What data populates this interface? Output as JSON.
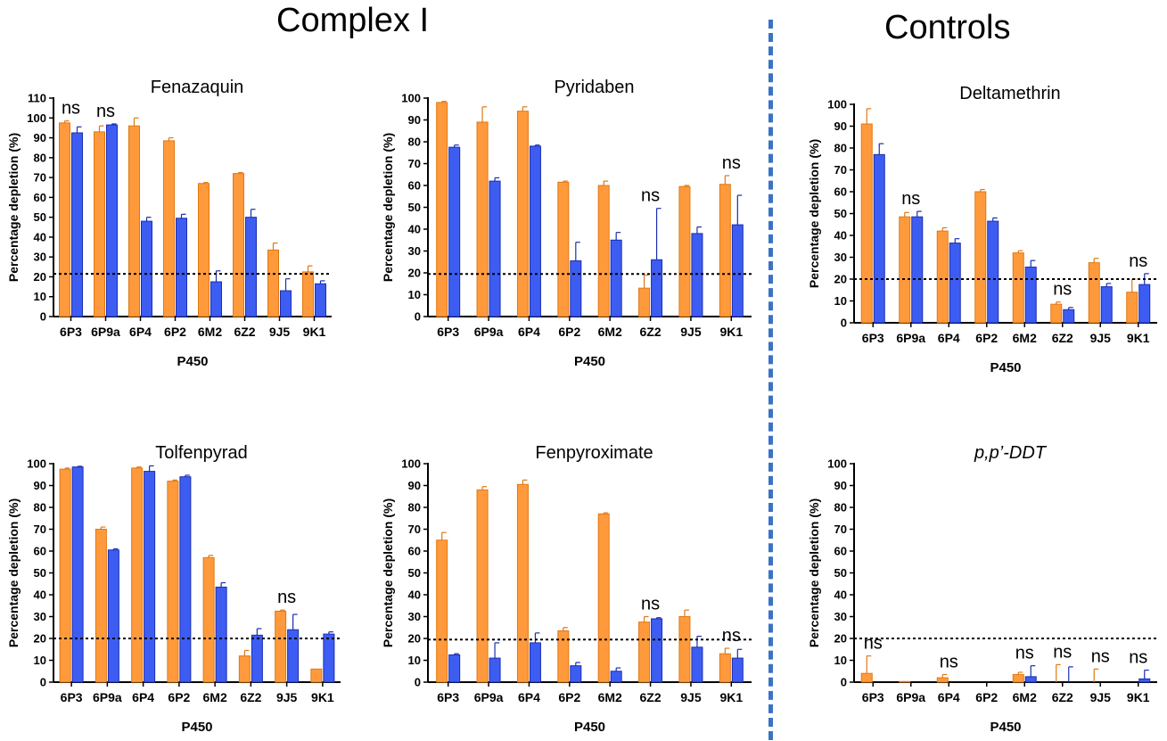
{
  "headers": {
    "left": "Complex I",
    "right": "Controls"
  },
  "colors": {
    "orange": "#ff9a3c",
    "orange_edge": "#e07810",
    "blue": "#3d5df2",
    "blue_edge": "#1a2db0",
    "divider": "#3b73c4"
  },
  "chart_data": [
    {
      "type": "bar",
      "title": "Fenazaquin",
      "title_style": "normal",
      "categories": [
        "6P3",
        "6P9a",
        "6P4",
        "6P2",
        "6M2",
        "6Z2",
        "9J5",
        "9K1"
      ],
      "series": [
        {
          "color": "orange",
          "values": [
            97.5,
            93,
            96,
            88.5,
            67,
            72,
            33.5,
            22.5
          ],
          "errors": [
            1,
            3,
            4,
            1.5,
            0.5,
            0.5,
            3.5,
            3
          ]
        },
        {
          "color": "blue",
          "values": [
            92.5,
            96.5,
            48,
            49.5,
            17.5,
            50,
            13,
            16.5
          ],
          "errors": [
            3,
            0.5,
            2,
            2,
            5.5,
            4,
            6,
            1.5
          ]
        }
      ],
      "ylim": [
        0,
        110
      ],
      "yticks": [
        0,
        10,
        20,
        30,
        40,
        50,
        60,
        70,
        80,
        90,
        100,
        110
      ],
      "threshold": 21.5,
      "ylabel": "Percentage depletion (%)",
      "xlabel": "P450",
      "annotations": [
        {
          "index": 0,
          "text": "ns"
        },
        {
          "index": 1,
          "text": "ns"
        }
      ]
    },
    {
      "type": "bar",
      "title": "Pyridaben",
      "title_style": "normal",
      "categories": [
        "6P3",
        "6P9a",
        "6P4",
        "6P2",
        "6M2",
        "6Z2",
        "9J5",
        "9K1"
      ],
      "series": [
        {
          "color": "orange",
          "values": [
            98,
            89,
            94,
            61.5,
            60,
            13,
            59.5,
            60.5
          ],
          "errors": [
            0.5,
            7,
            2,
            0.5,
            2,
            6,
            0.5,
            4
          ]
        },
        {
          "color": "blue",
          "values": [
            77.5,
            62,
            78,
            25.5,
            35,
            26,
            38,
            42
          ],
          "errors": [
            1,
            1.5,
            0.5,
            8.5,
            3.5,
            23.5,
            3,
            13.5
          ]
        }
      ],
      "ylim": [
        0,
        100
      ],
      "yticks": [
        0,
        10,
        20,
        30,
        40,
        50,
        60,
        70,
        80,
        90,
        100
      ],
      "threshold": 19.5,
      "ylabel": "Percentage depletion (%)",
      "xlabel": "P450",
      "annotations": [
        {
          "index": 5,
          "text": "ns"
        },
        {
          "index": 7,
          "text": "ns"
        }
      ]
    },
    {
      "type": "bar",
      "title": "Deltamethrin",
      "title_style": "normal",
      "categories": [
        "6P3",
        "6P9a",
        "6P4",
        "6P2",
        "6M2",
        "6Z2",
        "9J5",
        "9K1"
      ],
      "series": [
        {
          "color": "orange",
          "values": [
            91,
            48.5,
            42,
            60,
            32,
            8.5,
            27.5,
            14
          ],
          "errors": [
            7,
            2,
            1.5,
            1,
            1,
            1,
            2,
            6
          ]
        },
        {
          "color": "blue",
          "values": [
            77,
            48.5,
            36.5,
            46.5,
            25.5,
            6,
            16.5,
            17.5
          ],
          "errors": [
            5,
            2.5,
            2,
            1.5,
            3,
            1,
            1.5,
            5
          ]
        }
      ],
      "ylim": [
        0,
        100
      ],
      "yticks": [
        0,
        10,
        20,
        30,
        40,
        50,
        60,
        70,
        80,
        90,
        100
      ],
      "threshold": 20,
      "ylabel": "Percentage depletion (%)",
      "xlabel": "P450",
      "annotations": [
        {
          "index": 1,
          "text": "ns"
        },
        {
          "index": 5,
          "text": "ns"
        },
        {
          "index": 7,
          "text": "ns"
        }
      ]
    },
    {
      "type": "bar",
      "title": "Tolfenpyrad",
      "title_style": "normal",
      "categories": [
        "6P3",
        "6P9a",
        "6P4",
        "6P2",
        "6M2",
        "6Z2",
        "9J5",
        "9K1"
      ],
      "series": [
        {
          "color": "orange",
          "values": [
            97.5,
            70,
            98,
            92,
            57,
            12,
            32.5,
            6
          ],
          "errors": [
            0.5,
            1,
            0.5,
            0.5,
            1,
            2.5,
            0.5,
            0
          ]
        },
        {
          "color": "blue",
          "values": [
            98.5,
            60.5,
            96.5,
            94,
            43.5,
            21.5,
            24,
            22
          ],
          "errors": [
            0.3,
            0.5,
            2.5,
            0.7,
            2,
            3,
            7,
            1
          ]
        }
      ],
      "ylim": [
        0,
        100
      ],
      "yticks": [
        0,
        10,
        20,
        30,
        40,
        50,
        60,
        70,
        80,
        90,
        100
      ],
      "threshold": 20,
      "ylabel": "Percentage depletion (%)",
      "xlabel": "P450",
      "annotations": [
        {
          "index": 6,
          "text": "ns"
        }
      ]
    },
    {
      "type": "bar",
      "title": "Fenpyroximate",
      "title_style": "normal",
      "categories": [
        "6P3",
        "6P9a",
        "6P4",
        "6P2",
        "6M2",
        "6Z2",
        "9J5",
        "9K1"
      ],
      "series": [
        {
          "color": "orange",
          "values": [
            65,
            88,
            90.5,
            23.5,
            77,
            27.5,
            30,
            13
          ],
          "errors": [
            3.5,
            1.5,
            2,
            1.5,
            0.5,
            2.5,
            3,
            2.5
          ]
        },
        {
          "color": "blue",
          "values": [
            12.5,
            11,
            18,
            7.5,
            5,
            29,
            16,
            11
          ],
          "errors": [
            0.5,
            7,
            4.5,
            1.5,
            1.5,
            0.5,
            5,
            4
          ]
        }
      ],
      "ylim": [
        0,
        100
      ],
      "yticks": [
        0,
        10,
        20,
        30,
        40,
        50,
        60,
        70,
        80,
        90,
        100
      ],
      "threshold": 19.5,
      "ylabel": "Percentage depletion (%)",
      "xlabel": "P450",
      "annotations": [
        {
          "index": 5,
          "text": "ns"
        },
        {
          "index": 7,
          "text": "ns"
        }
      ]
    },
    {
      "type": "bar",
      "title": "p,p’-DDT",
      "title_style": "italic",
      "categories": [
        "6P3",
        "6P9a",
        "6P4",
        "6P2",
        "6M2",
        "6Z2",
        "9J5",
        "9K1"
      ],
      "series": [
        {
          "color": "orange",
          "values": [
            4,
            0.3,
            2,
            0,
            3.5,
            0,
            0,
            0
          ],
          "errors": [
            8,
            0,
            1.5,
            0,
            1,
            8,
            6,
            0
          ]
        },
        {
          "color": "blue",
          "values": [
            0,
            0,
            0,
            0,
            2.5,
            0,
            0,
            1.5
          ],
          "errors": [
            0,
            0,
            0,
            0,
            5,
            7,
            0,
            4
          ]
        }
      ],
      "ylim": [
        0,
        100
      ],
      "yticks": [
        0,
        10,
        20,
        30,
        40,
        50,
        60,
        70,
        80,
        90,
        100
      ],
      "threshold": 20,
      "ylabel": "Percentage depletion (%)",
      "xlabel": "P450",
      "annotations": [
        {
          "index": 0,
          "text": "ns"
        },
        {
          "index": 2,
          "text": "ns"
        },
        {
          "index": 4,
          "text": "ns"
        },
        {
          "index": 5,
          "text": "ns"
        },
        {
          "index": 6,
          "text": "ns"
        },
        {
          "index": 7,
          "text": "ns"
        }
      ]
    }
  ]
}
